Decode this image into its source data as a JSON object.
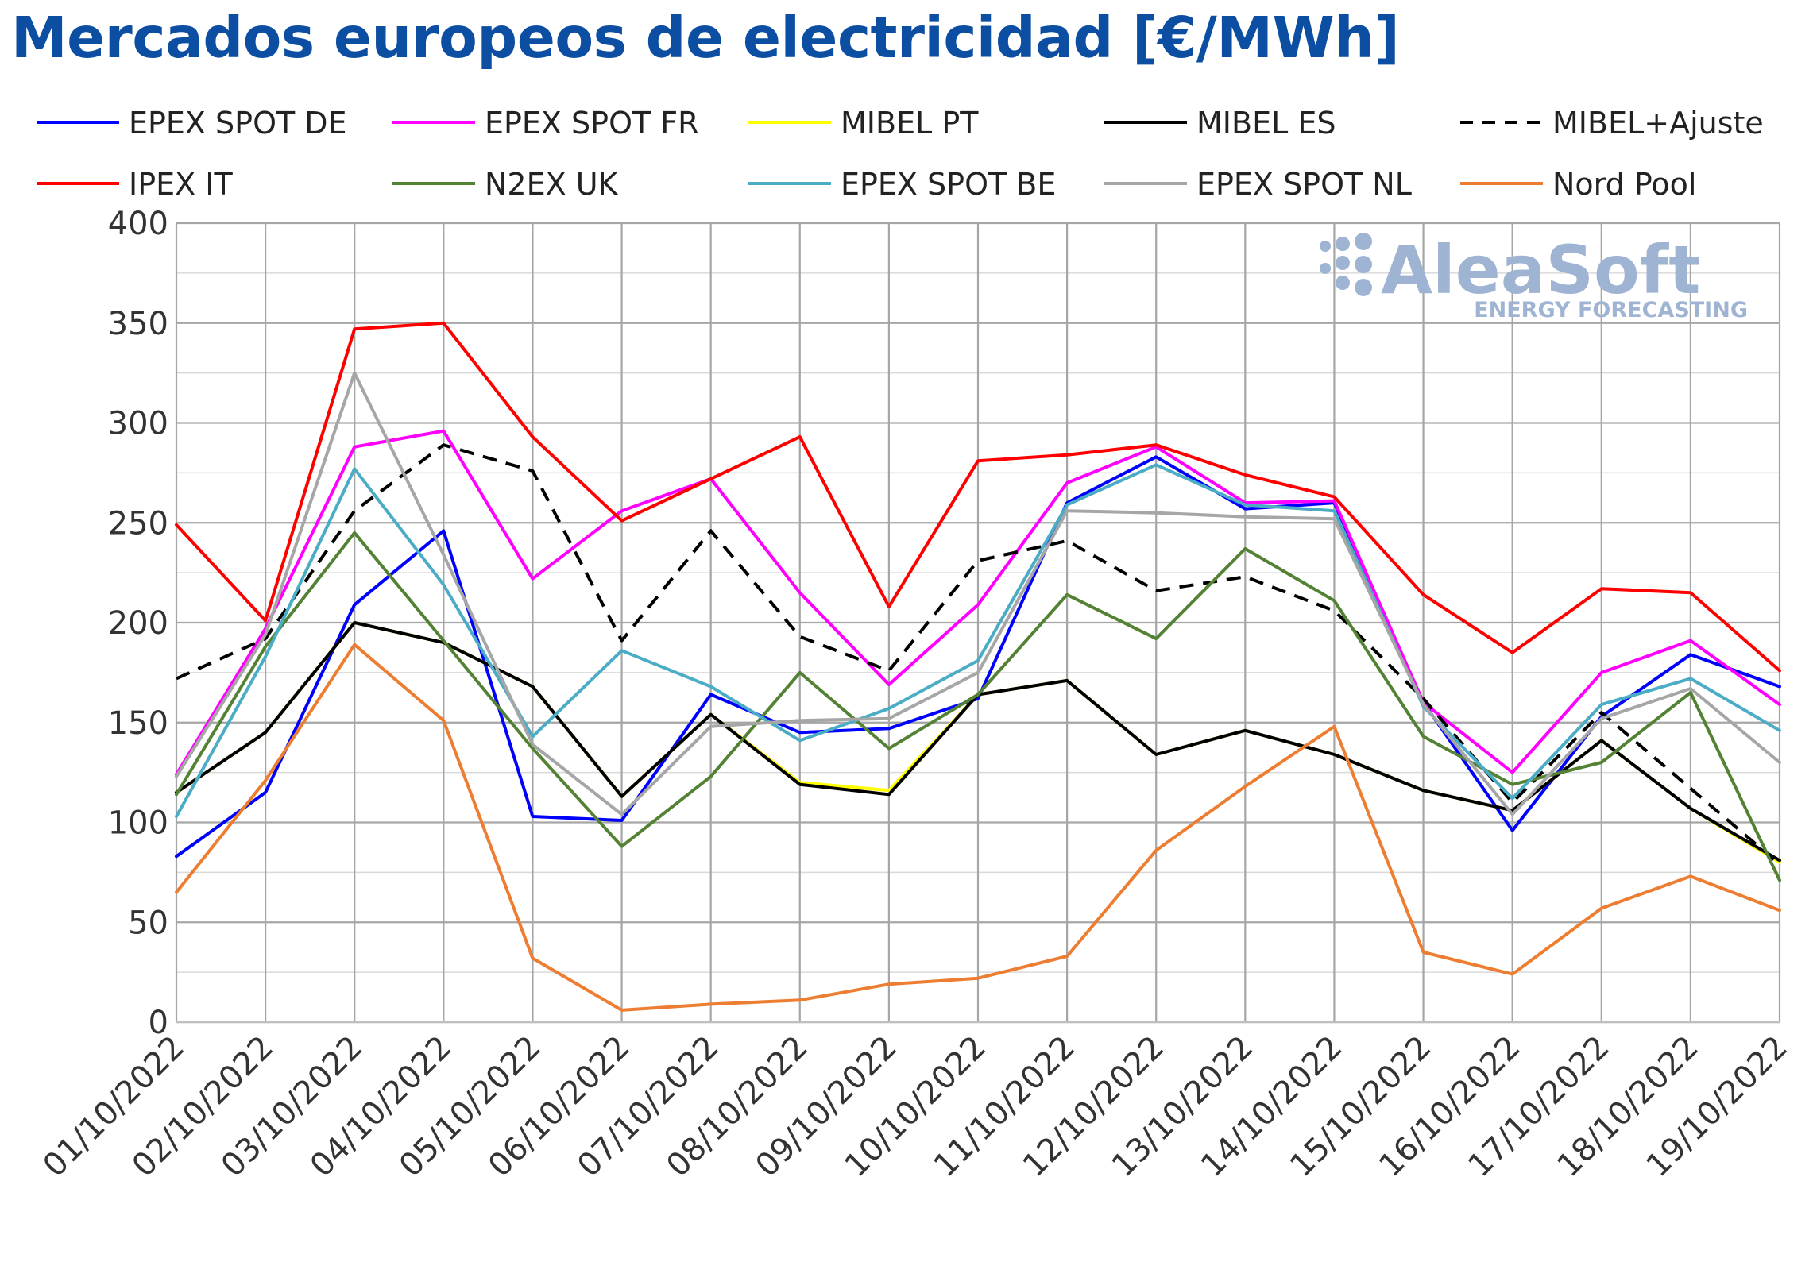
{
  "chart_data": {
    "type": "line",
    "title": "Mercados europeos de electricidad [€/MWh]",
    "xlabel": "",
    "ylabel": "",
    "ylim": [
      0,
      400
    ],
    "yticks": [
      0,
      50,
      100,
      150,
      200,
      250,
      300,
      350,
      400
    ],
    "grid": true,
    "legend_position": "top",
    "categories": [
      "01/10/2022",
      "02/10/2022",
      "03/10/2022",
      "04/10/2022",
      "05/10/2022",
      "06/10/2022",
      "07/10/2022",
      "08/10/2022",
      "09/10/2022",
      "10/10/2022",
      "11/10/2022",
      "12/10/2022",
      "13/10/2022",
      "14/10/2022",
      "15/10/2022",
      "16/10/2022",
      "17/10/2022",
      "18/10/2022",
      "19/10/2022"
    ],
    "series": [
      {
        "name": "EPEX SPOT DE",
        "color": "#0000FF",
        "dash": false,
        "values": [
          83,
          115,
          209,
          246,
          103,
          101,
          164,
          145,
          147,
          162,
          260,
          283,
          257,
          260,
          160,
          96,
          153,
          184,
          168
        ]
      },
      {
        "name": "EPEX SPOT FR",
        "color": "#FF00FF",
        "dash": false,
        "values": [
          124,
          197,
          288,
          296,
          222,
          256,
          272,
          215,
          169,
          209,
          270,
          288,
          260,
          261,
          160,
          125,
          175,
          191,
          159
        ]
      },
      {
        "name": "MIBEL PT",
        "color": "#FFFF00",
        "dash": false,
        "values": [
          115,
          145,
          200,
          190,
          168,
          113,
          154,
          120,
          116,
          164,
          171,
          134,
          146,
          134,
          116,
          106,
          141,
          107,
          80
        ]
      },
      {
        "name": "MIBEL ES",
        "color": "#000000",
        "dash": false,
        "values": [
          115,
          145,
          200,
          190,
          168,
          113,
          154,
          119,
          114,
          164,
          171,
          134,
          146,
          134,
          116,
          106,
          141,
          107,
          81
        ]
      },
      {
        "name": "MIBEL+Ajuste",
        "color": "#000000",
        "dash": true,
        "values": [
          172,
          192,
          256,
          289,
          276,
          191,
          246,
          193,
          176,
          231,
          241,
          216,
          223,
          206,
          162,
          110,
          155,
          117,
          79
        ]
      },
      {
        "name": "IPEX IT",
        "color": "#FF0000",
        "dash": false,
        "values": [
          249,
          201,
          347,
          350,
          293,
          251,
          272,
          293,
          208,
          281,
          284,
          289,
          274,
          263,
          214,
          185,
          217,
          215,
          176
        ]
      },
      {
        "name": "N2EX UK",
        "color": "#548235",
        "dash": false,
        "values": [
          114,
          188,
          245,
          191,
          137,
          88,
          123,
          175,
          137,
          164,
          214,
          192,
          237,
          211,
          143,
          119,
          130,
          165,
          71
        ]
      },
      {
        "name": "EPEX SPOT BE",
        "color": "#4BACC6",
        "dash": false,
        "values": [
          103,
          183,
          277,
          219,
          143,
          186,
          168,
          141,
          157,
          181,
          259,
          279,
          259,
          256,
          158,
          112,
          159,
          172,
          146
        ]
      },
      {
        "name": "EPEX SPOT NL",
        "color": "#A6A6A6",
        "dash": false,
        "values": [
          123,
          194,
          325,
          234,
          139,
          104,
          148,
          151,
          152,
          175,
          256,
          255,
          253,
          252,
          159,
          104,
          152,
          167,
          130
        ]
      },
      {
        "name": "Nord Pool",
        "color": "#ED7D31",
        "dash": false,
        "values": [
          65,
          121,
          189,
          151,
          32,
          6,
          9,
          11,
          19,
          22,
          33,
          86,
          118,
          148,
          35,
          24,
          57,
          73,
          56
        ]
      }
    ]
  },
  "watermark": {
    "brand": "AleaSoft",
    "tagline": "ENERGY FORECASTING"
  }
}
